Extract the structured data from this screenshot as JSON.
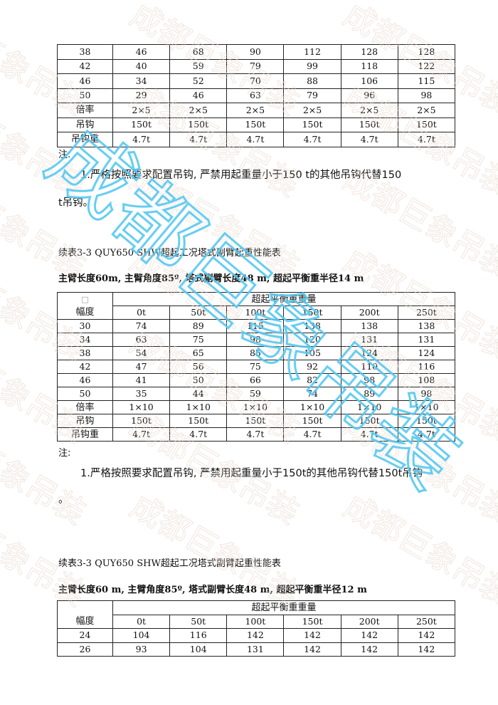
{
  "watermark": {
    "text": "成都巨象吊装",
    "faint_color": "#e8d8cc",
    "accent_color": "#55c8f0"
  },
  "table1": {
    "rows": [
      [
        "38",
        "46",
        "68",
        "90",
        "112",
        "128",
        "128"
      ],
      [
        "42",
        "40",
        "59",
        "79",
        "99",
        "118",
        "122"
      ],
      [
        "46",
        "34",
        "52",
        "70",
        "88",
        "106",
        "115"
      ],
      [
        "50",
        "29",
        "46",
        "63",
        "79",
        "96",
        "98"
      ],
      [
        "倍率",
        "2×5",
        "2×5",
        "2×5",
        "2×5",
        "2×5",
        "2×5"
      ],
      [
        "吊钩",
        "150t",
        "150t",
        "150t",
        "150t",
        "150t",
        "150t"
      ],
      [
        "吊钩重",
        "4.7t",
        "4.7t",
        "4.7t",
        "4.7t",
        "4.7t",
        "4.7t"
      ]
    ]
  },
  "note1": {
    "label": "注:",
    "line1": "1.严格按照要求配置吊钩, 严禁用起重量小于150 t的其他吊钩代替150",
    "line2": "t吊钩。"
  },
  "section2": {
    "title": "续表3-3 QUY650 SHW超起工况塔式副臂起重性能表",
    "subtitle": "主臂长度60m, 主臂角度85º, 塔式副臂长度48 m, 超起平衡重半径14 m",
    "corner": "□",
    "group_header": "超起平衡重重量",
    "row_header": "幅度",
    "columns": [
      "0t",
      "50t",
      "100t",
      "150t",
      "200t",
      "250t"
    ],
    "rows": [
      [
        "30",
        "74",
        "89",
        "115",
        "138",
        "138",
        "138"
      ],
      [
        "34",
        "63",
        "75",
        "98",
        "120",
        "131",
        "131"
      ],
      [
        "38",
        "54",
        "65",
        "85",
        "105",
        "124",
        "124"
      ],
      [
        "42",
        "47",
        "56",
        "75",
        "92",
        "110",
        "116"
      ],
      [
        "46",
        "41",
        "50",
        "66",
        "82",
        "98",
        "108"
      ],
      [
        "50",
        "35",
        "44",
        "59",
        "74",
        "89",
        "98"
      ],
      [
        "倍率",
        "1×10",
        "1×10",
        "1×10",
        "1×10",
        "1×10",
        "1×10"
      ],
      [
        "吊钩",
        "150t",
        "150t",
        "150t",
        "150t",
        "150t",
        "150t"
      ],
      [
        "吊钩重",
        "4.7t",
        "4.7t",
        "4.7t",
        "4.7t",
        "4.7t",
        "4.7t"
      ]
    ]
  },
  "note2": {
    "label": "注:",
    "line1": "1.严格按照要求配置吊钩, 严禁用起重量小于150t的其他吊钩代替150t吊钩",
    "line2": "。"
  },
  "section3": {
    "title": "续表3-3 QUY650 SHW超起工况塔式副臂起重性能表",
    "subtitle": "主臂长度60 m, 主臂角度85º, 塔式副臂长度48 m, 超起平衡重半径12 m",
    "group_header": "超起平衡重重量",
    "row_header": "幅度",
    "columns": [
      "0t",
      "50t",
      "100t",
      "150t",
      "200t",
      "250t"
    ],
    "rows": [
      [
        "24",
        "104",
        "116",
        "142",
        "142",
        "142",
        "142"
      ],
      [
        "26",
        "93",
        "104",
        "131",
        "142",
        "142",
        "142"
      ]
    ]
  }
}
